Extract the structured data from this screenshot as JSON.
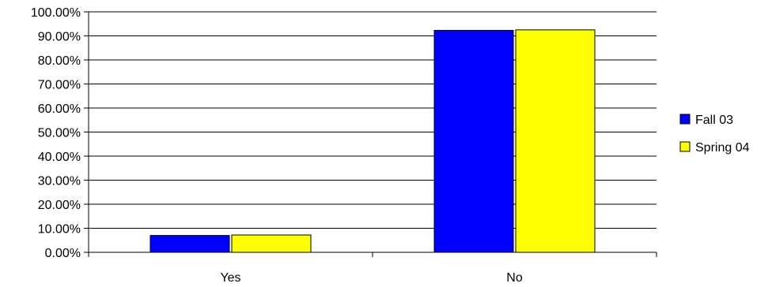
{
  "chart_data": {
    "type": "bar",
    "categories": [
      "Yes",
      "No"
    ],
    "series": [
      {
        "name": "Fall 03",
        "values": [
          7.0,
          92.3
        ],
        "color": "#0000FF"
      },
      {
        "name": "Spring 04",
        "values": [
          7.2,
          92.5
        ],
        "color": "#FFFF00"
      }
    ],
    "ylim": [
      0,
      100
    ],
    "yticks": [
      "0.00%",
      "10.00%",
      "20.00%",
      "30.00%",
      "40.00%",
      "50.00%",
      "60.00%",
      "70.00%",
      "80.00%",
      "90.00%",
      "100.00%"
    ],
    "grid": true,
    "legend_position": "right"
  }
}
